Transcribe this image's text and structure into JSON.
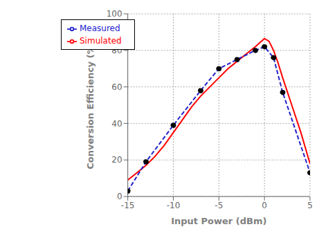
{
  "chart_data": {
    "type": "line",
    "xlabel": "Input Power (dBm)",
    "ylabel": "Conversion Efficiency (%)",
    "xlim": [
      -15,
      5
    ],
    "ylim": [
      0,
      100
    ],
    "xticks": [
      -15,
      -10,
      -5,
      0,
      5
    ],
    "yticks": [
      0,
      20,
      40,
      60,
      80,
      100
    ],
    "grid": true,
    "legend": "upper left",
    "series": [
      {
        "name": "Simulated",
        "color": "#ff0000",
        "line_style": "solid",
        "x": [
          -15,
          -14,
          -13,
          -12,
          -11,
          -10,
          -9,
          -8,
          -7,
          -6,
          -5,
          -4,
          -3,
          -2,
          -1,
          0,
          0.5,
          1,
          1.5,
          2,
          3,
          4,
          5
        ],
        "values": [
          9,
          13,
          17,
          22,
          28,
          35,
          42,
          49,
          55,
          60,
          65,
          70,
          74,
          78,
          82,
          86.5,
          85,
          80,
          73,
          65,
          50,
          35,
          18
        ]
      },
      {
        "name": "Measured",
        "color": "#2222cc",
        "line_style": "dashed",
        "marker": "circle",
        "x": [
          -15,
          -13,
          -10,
          -7,
          -5,
          -3,
          -1,
          0,
          1,
          2,
          5
        ],
        "values": [
          3,
          19,
          39,
          58,
          70,
          75,
          80,
          82,
          76,
          57,
          13
        ]
      }
    ]
  }
}
